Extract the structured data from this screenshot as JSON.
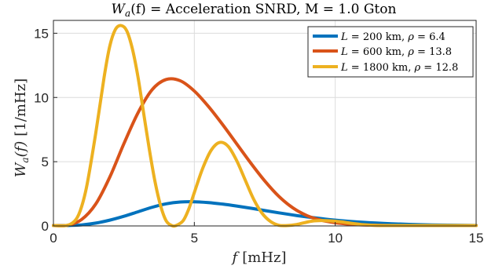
{
  "chart_data": {
    "type": "line",
    "title": {
      "prefix": "W",
      "sub": "a",
      "suffix": "(f) = Acceleration SNRD, M = 1.0 Gton"
    },
    "xlabel": {
      "var": "f",
      "unit": "[mHz]"
    },
    "ylabel": {
      "var": "W",
      "sub": "a",
      "rest": "(f)",
      "unit": "[1/mHz]"
    },
    "xlim": [
      0,
      15
    ],
    "ylim": [
      0,
      16
    ],
    "xticks": [
      0,
      5,
      10,
      15
    ],
    "yticks": [
      0,
      5,
      10,
      15
    ],
    "grid": true,
    "legend_position": "top-right",
    "series": [
      {
        "name": "L = 200 km, ρ = 6.4",
        "legend": {
          "L": "200",
          "rho": "6.4"
        },
        "color": "#0072BD",
        "x": [
          0,
          0.5,
          1.0,
          1.5,
          2.0,
          2.5,
          3.0,
          3.5,
          4.0,
          4.5,
          5.0,
          5.5,
          6.0,
          6.5,
          7.0,
          7.5,
          8.0,
          8.5,
          9.0,
          9.5,
          10.0,
          11.0,
          12.0,
          13.0,
          14.0,
          15.0
        ],
        "values": [
          0,
          0.02,
          0.08,
          0.22,
          0.45,
          0.75,
          1.1,
          1.45,
          1.72,
          1.86,
          1.88,
          1.82,
          1.7,
          1.55,
          1.38,
          1.2,
          1.02,
          0.85,
          0.7,
          0.57,
          0.45,
          0.28,
          0.17,
          0.1,
          0.06,
          0.04
        ]
      },
      {
        "name": "L = 600 km, ρ = 13.8",
        "legend": {
          "L": "600",
          "rho": "13.8"
        },
        "color": "#D95319",
        "x": [
          0,
          0.5,
          1.0,
          1.5,
          2.0,
          2.5,
          3.0,
          3.5,
          4.0,
          4.5,
          5.0,
          5.5,
          6.0,
          6.5,
          7.0,
          7.5,
          8.0,
          8.5,
          9.0,
          9.5,
          10.0,
          10.5,
          11.0,
          12.0,
          13.0,
          14.0,
          15.0
        ],
        "values": [
          0,
          0.05,
          0.5,
          1.7,
          3.8,
          6.4,
          8.8,
          10.6,
          11.4,
          11.3,
          10.5,
          9.3,
          7.9,
          6.4,
          4.9,
          3.5,
          2.3,
          1.4,
          0.8,
          0.45,
          0.25,
          0.14,
          0.08,
          0.03,
          0.01,
          0.01,
          0
        ]
      },
      {
        "name": "L = 1800 km, ρ = 12.8",
        "legend": {
          "L": "1800",
          "rho": "12.8"
        },
        "color": "#EDB120",
        "x": [
          0,
          0.5,
          0.8,
          1.0,
          1.2,
          1.5,
          1.8,
          2.0,
          2.2,
          2.4,
          2.6,
          2.8,
          3.0,
          3.2,
          3.4,
          3.6,
          3.8,
          4.0,
          4.2,
          4.35,
          4.6,
          4.8,
          5.0,
          5.3,
          5.6,
          5.9,
          6.2,
          6.5,
          6.8,
          7.1,
          7.4,
          7.7,
          8.0,
          8.3,
          8.6,
          8.9,
          9.2,
          9.5,
          9.8,
          10.2,
          10.6,
          11.0,
          11.5,
          12.0,
          13.0,
          14.0,
          15.0
        ],
        "values": [
          0,
          0.05,
          0.5,
          1.5,
          3.3,
          7.2,
          11.6,
          14.0,
          15.3,
          15.6,
          15.2,
          13.8,
          11.6,
          8.8,
          6.0,
          3.5,
          1.6,
          0.4,
          0.02,
          0,
          0.4,
          1.3,
          2.6,
          4.5,
          5.9,
          6.5,
          6.2,
          5.1,
          3.6,
          2.1,
          1.0,
          0.35,
          0.05,
          0.02,
          0.1,
          0.25,
          0.38,
          0.42,
          0.4,
          0.32,
          0.2,
          0.1,
          0.04,
          0.02,
          0,
          0,
          0
        ]
      }
    ]
  }
}
